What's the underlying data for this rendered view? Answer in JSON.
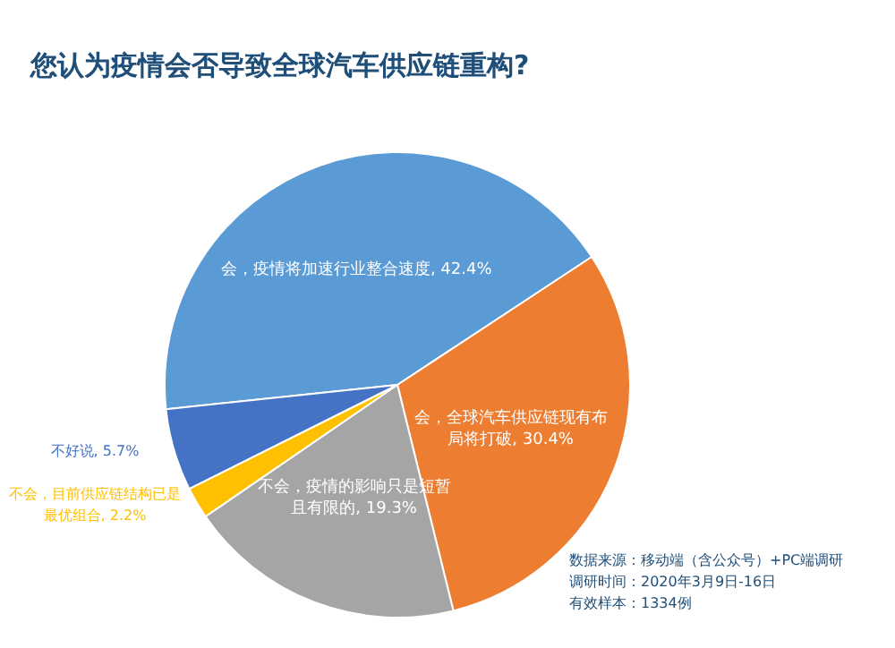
{
  "chart_data": {
    "type": "pie",
    "title": "您认为疫情会否导致全球汽车供应链重构?",
    "categories": [
      "会，疫情将加速行业整合速度",
      "会，全球汽车供应链现有布局将打破",
      "不会，疫情的影响只是短暂且有限的",
      "不会，目前供应链结构已是最优组合",
      "不好说"
    ],
    "values": [
      42.4,
      30.4,
      19.3,
      2.2,
      5.7
    ],
    "value_labels": [
      "42.4%",
      "30.4%",
      "19.3%",
      "2.2%",
      "5.7%"
    ],
    "colors": [
      "#5b9bd5",
      "#ed7d31",
      "#a5a5a5",
      "#ffc000",
      "#4472c4"
    ],
    "legend": false,
    "annotations": [
      "数据来源：移动端（含公众号）+PC端调研",
      "调研时间：2020年3月9日-16日",
      "有效样本：1334例"
    ]
  }
}
